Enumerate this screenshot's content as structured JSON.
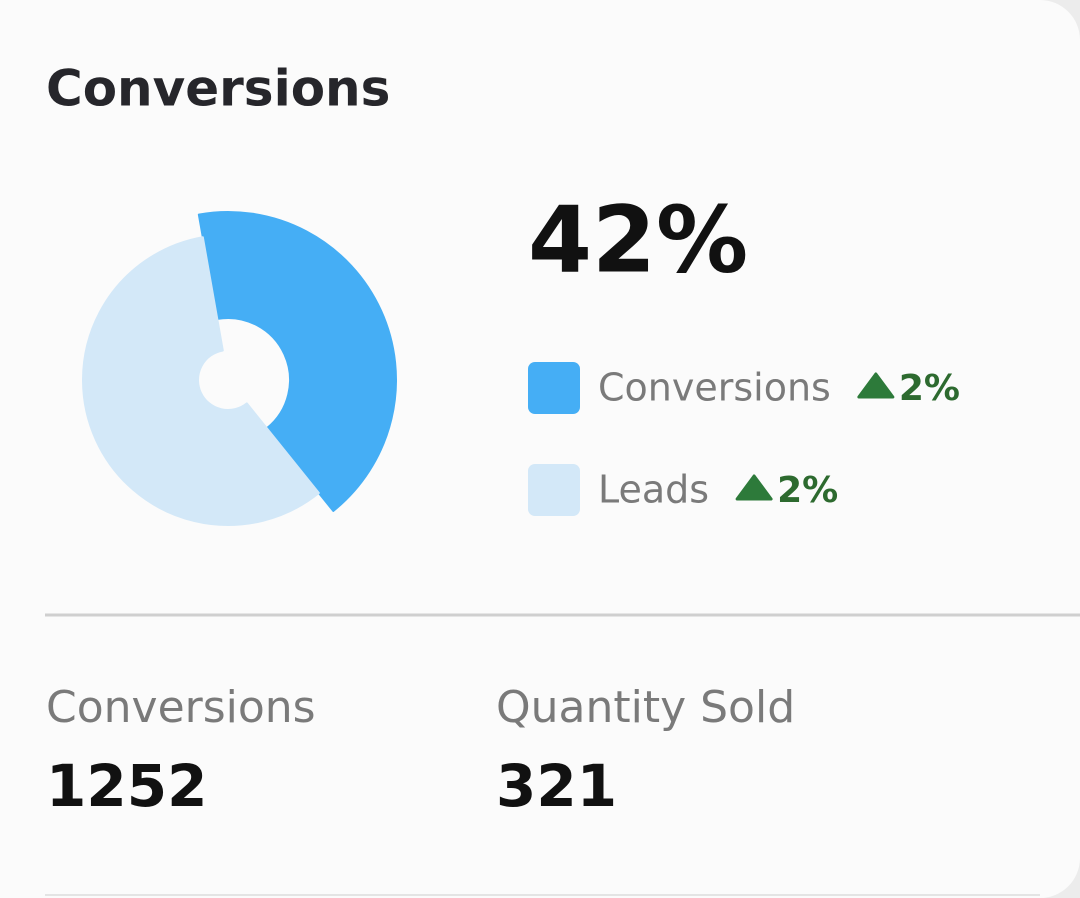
{
  "title": "Conversions",
  "chart_data": {
    "type": "pie",
    "categories": [
      "Conversions",
      "Leads"
    ],
    "values": [
      42,
      58
    ],
    "colors": [
      "#45aef5",
      "#d3e8f8"
    ],
    "headline": "42%",
    "changes": [
      "2%",
      "2%"
    ]
  },
  "stats": [
    {
      "label": "Conversions",
      "value": 1252
    },
    {
      "label": "Quantity Sold",
      "value": 321
    }
  ]
}
